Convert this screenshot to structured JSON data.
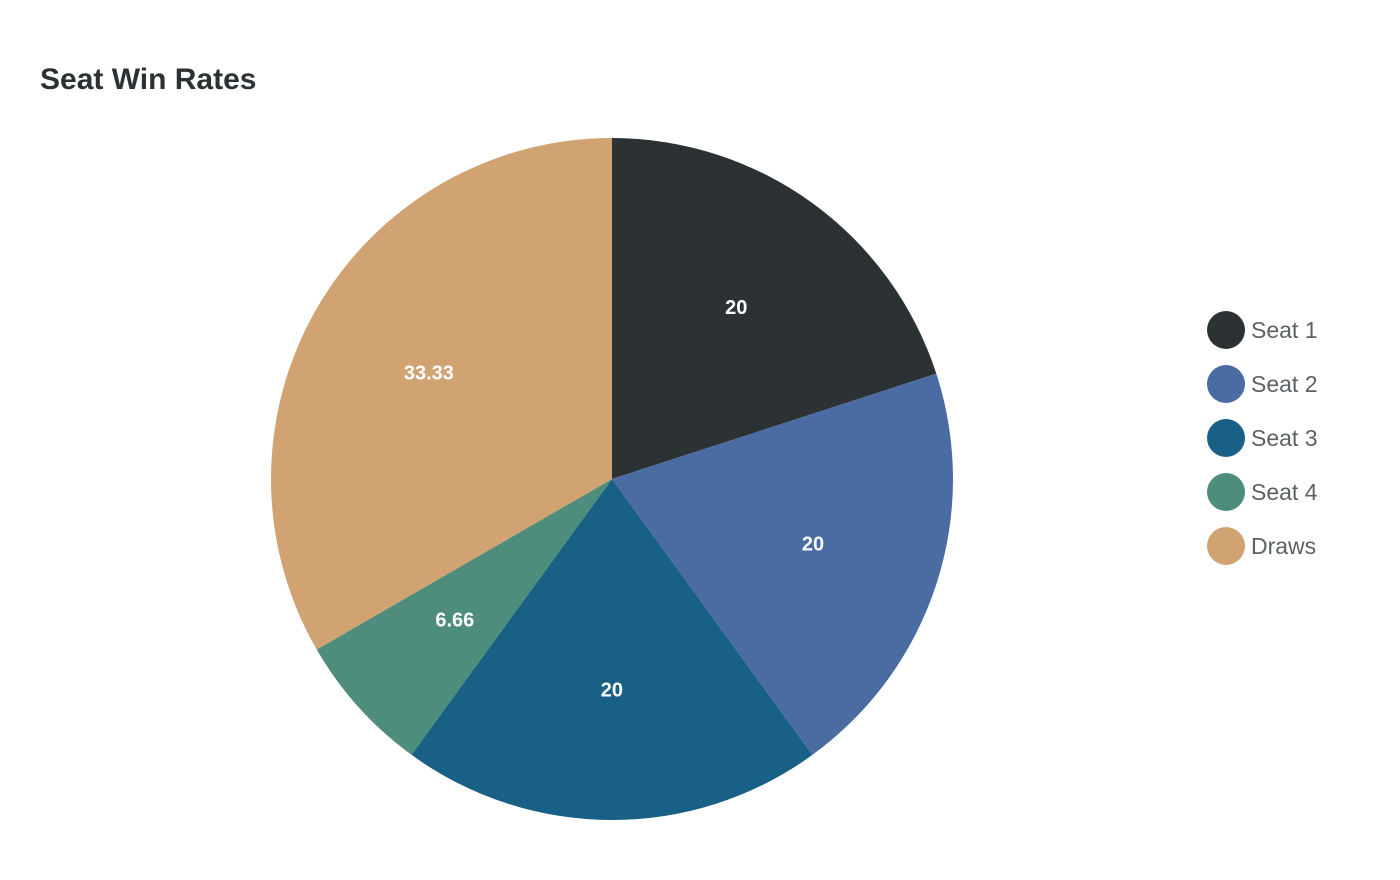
{
  "chart_data": {
    "type": "pie",
    "title": "Seat Win Rates",
    "categories": [
      "Seat 1",
      "Seat 2",
      "Seat 3",
      "Seat 4",
      "Draws"
    ],
    "values": [
      20,
      20,
      20,
      6.66,
      33.33
    ],
    "value_labels": [
      "20",
      "20",
      "20",
      "6.66",
      "33.33"
    ],
    "colors": [
      "#2c3134",
      "#4a6ca3",
      "#186086",
      "#4e8c7b",
      "#d1a373"
    ],
    "legend_position": "right",
    "start_angle": "12 o'clock",
    "direction": "clockwise"
  }
}
